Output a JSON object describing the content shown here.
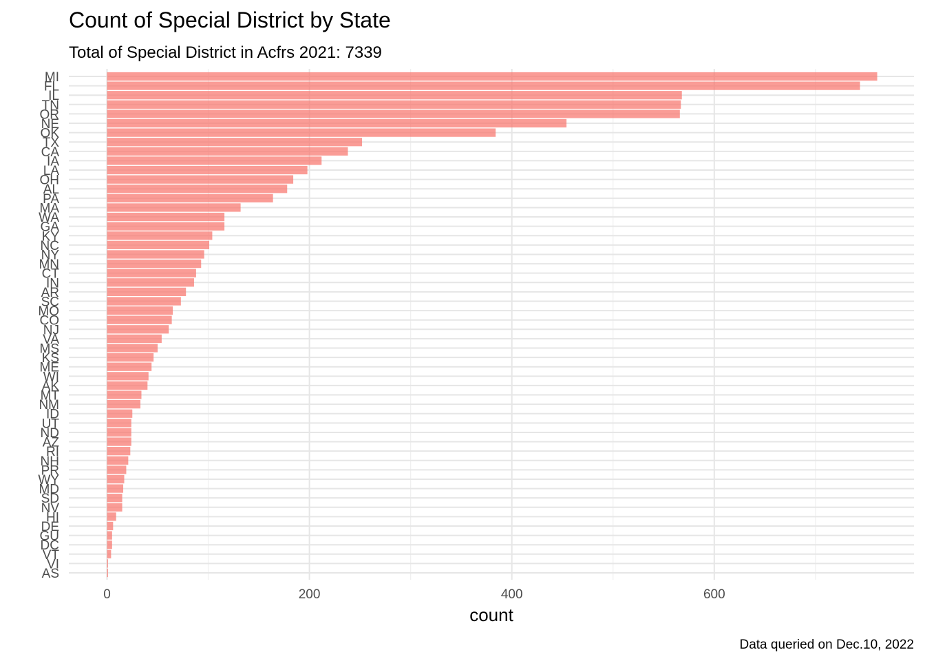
{
  "chart_data": {
    "type": "bar",
    "orientation": "horizontal",
    "title": "Count of Special District by State",
    "subtitle": "Total of Special District in Acfrs 2021: 7339",
    "caption": "Data queried on Dec.10, 2022",
    "xlabel": "count",
    "ylabel": "",
    "xlim": [
      -40,
      800
    ],
    "x_ticks": [
      0,
      200,
      400,
      600
    ],
    "grid": true,
    "legend": "none",
    "bar_color": "#F8766D",
    "categories": [
      "MI",
      "FL",
      "IL",
      "TN",
      "OR",
      "NE",
      "OK",
      "TX",
      "CA",
      "IA",
      "LA",
      "OH",
      "AL",
      "PA",
      "MA",
      "WA",
      "GA",
      "KY",
      "NC",
      "NY",
      "MN",
      "CT",
      "IN",
      "AR",
      "SC",
      "MO",
      "CO",
      "NJ",
      "VA",
      "MS",
      "KS",
      "ME",
      "WI",
      "AK",
      "MT",
      "NM",
      "ID",
      "UT",
      "ND",
      "AZ",
      "RI",
      "NH",
      "PR",
      "WY",
      "MD",
      "SD",
      "NV",
      "HI",
      "DE",
      "GU",
      "DC",
      "VT",
      "VI",
      "AS"
    ],
    "values": [
      761,
      744,
      568,
      567,
      566,
      454,
      384,
      252,
      238,
      212,
      198,
      184,
      178,
      164,
      132,
      116,
      116,
      104,
      101,
      96,
      93,
      88,
      86,
      78,
      73,
      65,
      64,
      61,
      54,
      50,
      46,
      44,
      41,
      40,
      34,
      33,
      25,
      24,
      24,
      24,
      23,
      21,
      19,
      17,
      16,
      15,
      15,
      9,
      6,
      5,
      5,
      4,
      1,
      1
    ]
  }
}
